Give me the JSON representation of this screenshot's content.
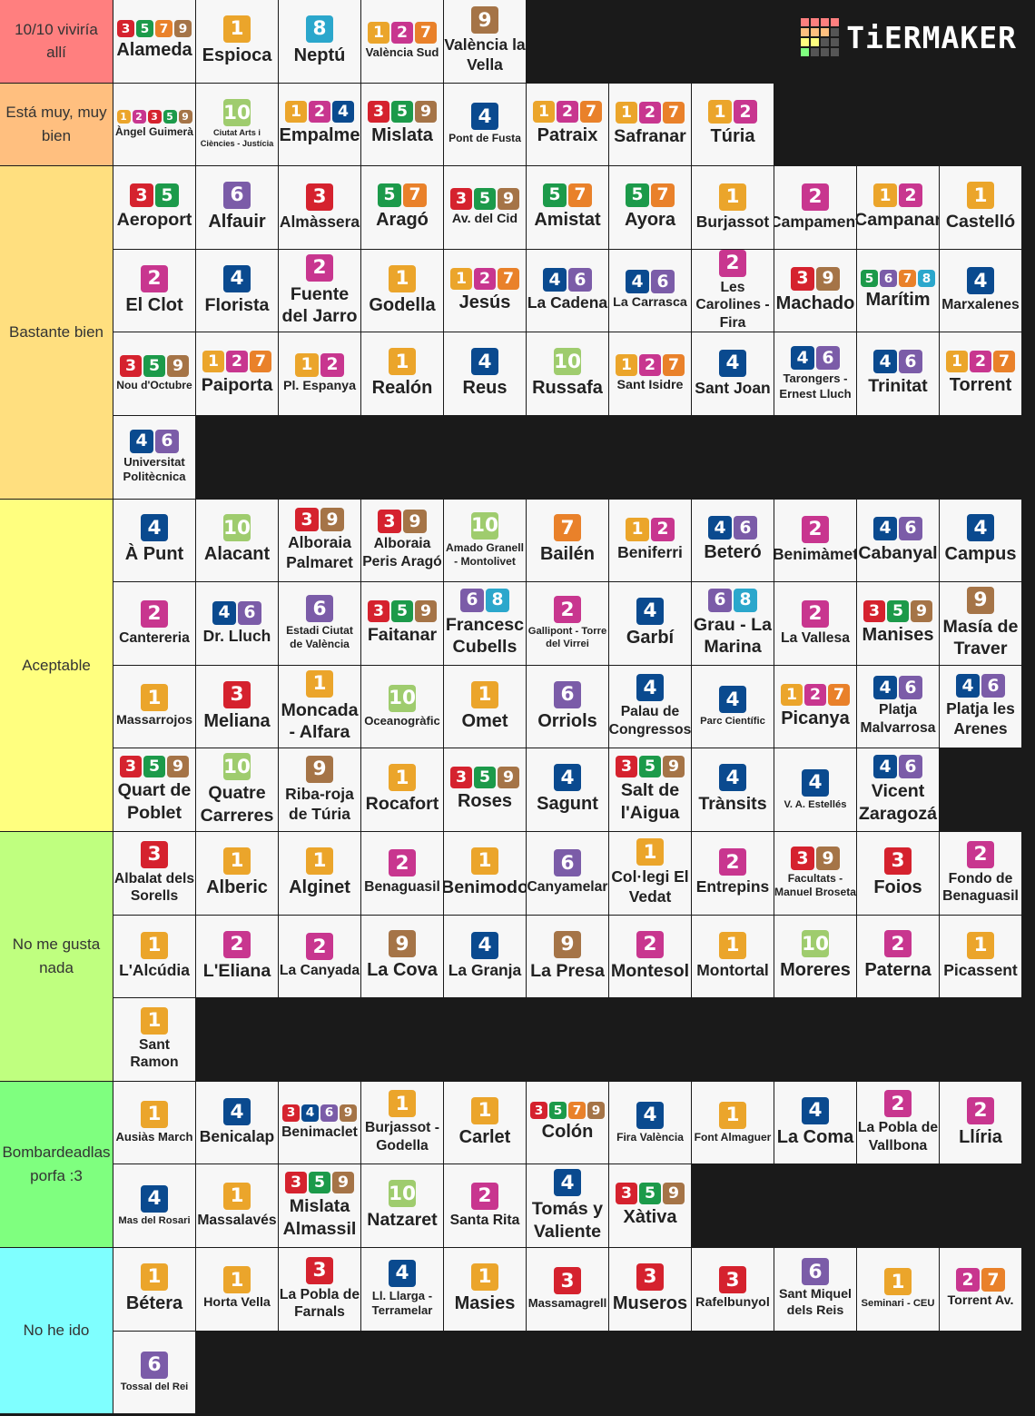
{
  "header": {
    "logo": "TiERMAKER"
  },
  "line_colors": {
    "1": "#eba52b",
    "2": "#c8368f",
    "3": "#d5222e",
    "4": "#0a4a8f",
    "5": "#1c9a4a",
    "6": "#7b5ca8",
    "7": "#e9812a",
    "8": "#2ba7cc",
    "9": "#a57447",
    "10": "#9fcc6e"
  },
  "tiers": [
    {
      "label": "10/10 viviría allí",
      "color": "#ff7f7f",
      "items": [
        {
          "name": "Alameda",
          "lines": [
            3,
            5,
            7,
            9
          ]
        },
        {
          "name": "Espioca",
          "lines": [
            1
          ]
        },
        {
          "name": "Neptú",
          "lines": [
            8
          ]
        },
        {
          "name": "València Sud",
          "lines": [
            1,
            2,
            7
          ]
        },
        {
          "name": "València la Vella",
          "lines": [
            9
          ]
        }
      ]
    },
    {
      "label": "Está muy, muy bien",
      "color": "#ffbf7f",
      "items": [
        {
          "name": "Àngel Guimerà",
          "lines": [
            1,
            2,
            3,
            5,
            9
          ]
        },
        {
          "name": "Ciutat Arts i Ciències - Justícia",
          "lines": [
            10
          ]
        },
        {
          "name": "Empalme",
          "lines": [
            1,
            2,
            4
          ]
        },
        {
          "name": "Mislata",
          "lines": [
            3,
            5,
            9
          ]
        },
        {
          "name": "Pont de Fusta",
          "lines": [
            4
          ]
        },
        {
          "name": "Patraix",
          "lines": [
            1,
            2,
            7
          ]
        },
        {
          "name": "Safranar",
          "lines": [
            1,
            2,
            7
          ]
        },
        {
          "name": "Túria",
          "lines": [
            1,
            2
          ]
        }
      ]
    },
    {
      "label": "Bastante bien",
      "color": "#ffdf7f",
      "items": [
        {
          "name": "Aeroport",
          "lines": [
            3,
            5
          ]
        },
        {
          "name": "Alfauir",
          "lines": [
            6
          ]
        },
        {
          "name": "Almàssera",
          "lines": [
            3
          ]
        },
        {
          "name": "Aragó",
          "lines": [
            5,
            7
          ]
        },
        {
          "name": "Av. del Cid",
          "lines": [
            3,
            5,
            9
          ]
        },
        {
          "name": "Amistat",
          "lines": [
            5,
            7
          ]
        },
        {
          "name": "Ayora",
          "lines": [
            5,
            7
          ]
        },
        {
          "name": "Burjassot",
          "lines": [
            1
          ]
        },
        {
          "name": "Campament",
          "lines": [
            2
          ]
        },
        {
          "name": "Campanar",
          "lines": [
            1,
            2
          ]
        },
        {
          "name": "Castelló",
          "lines": [
            1
          ]
        },
        {
          "name": "El Clot",
          "lines": [
            2
          ]
        },
        {
          "name": "Florista",
          "lines": [
            4
          ]
        },
        {
          "name": "Fuente del Jarro",
          "lines": [
            2
          ]
        },
        {
          "name": "Godella",
          "lines": [
            1
          ]
        },
        {
          "name": "Jesús",
          "lines": [
            1,
            2,
            7
          ]
        },
        {
          "name": "La Cadena",
          "lines": [
            4,
            6
          ]
        },
        {
          "name": "La Carrasca",
          "lines": [
            4,
            6
          ]
        },
        {
          "name": "Les Carolines - Fira",
          "lines": [
            2
          ]
        },
        {
          "name": "Machado",
          "lines": [
            3,
            9
          ]
        },
        {
          "name": "Marítim",
          "lines": [
            5,
            6,
            7,
            8
          ]
        },
        {
          "name": "Marxalenes",
          "lines": [
            4
          ]
        },
        {
          "name": "Nou d'Octubre",
          "lines": [
            3,
            5,
            9
          ]
        },
        {
          "name": "Paiporta",
          "lines": [
            1,
            2,
            7
          ]
        },
        {
          "name": "Pl. Espanya",
          "lines": [
            1,
            2
          ]
        },
        {
          "name": "Realón",
          "lines": [
            1
          ]
        },
        {
          "name": "Reus",
          "lines": [
            4
          ]
        },
        {
          "name": "Russafa",
          "lines": [
            10
          ]
        },
        {
          "name": "Sant Isidre",
          "lines": [
            1,
            2,
            7
          ]
        },
        {
          "name": "Sant Joan",
          "lines": [
            4
          ]
        },
        {
          "name": "Tarongers - Ernest Lluch",
          "lines": [
            4,
            6
          ]
        },
        {
          "name": "Trinitat",
          "lines": [
            4,
            6
          ]
        },
        {
          "name": "Torrent",
          "lines": [
            1,
            2,
            7
          ]
        },
        {
          "name": "Universitat Politècnica",
          "lines": [
            4,
            6
          ]
        }
      ]
    },
    {
      "label": "Aceptable",
      "color": "#ffff7f",
      "items": [
        {
          "name": "À Punt",
          "lines": [
            4
          ]
        },
        {
          "name": "Alacant",
          "lines": [
            10
          ]
        },
        {
          "name": "Alboraia Palmaret",
          "lines": [
            3,
            9
          ]
        },
        {
          "name": "Alboraia Peris Aragó",
          "lines": [
            3,
            9
          ]
        },
        {
          "name": "Amado Granell - Montolivet",
          "lines": [
            10
          ]
        },
        {
          "name": "Bailén",
          "lines": [
            7
          ]
        },
        {
          "name": "Beniferri",
          "lines": [
            1,
            2
          ]
        },
        {
          "name": "Beteró",
          "lines": [
            4,
            6
          ]
        },
        {
          "name": "Benimàmet",
          "lines": [
            2
          ]
        },
        {
          "name": "Cabanyal",
          "lines": [
            4,
            6
          ]
        },
        {
          "name": "Campus",
          "lines": [
            4
          ]
        },
        {
          "name": "Cantereria",
          "lines": [
            2
          ]
        },
        {
          "name": "Dr. Lluch",
          "lines": [
            4,
            6
          ]
        },
        {
          "name": "Estadi Ciutat de València",
          "lines": [
            6
          ]
        },
        {
          "name": "Faitanar",
          "lines": [
            3,
            5,
            9
          ]
        },
        {
          "name": "Francesc Cubells",
          "lines": [
            6,
            8
          ]
        },
        {
          "name": "Gallipont - Torre del Virrei",
          "lines": [
            2
          ]
        },
        {
          "name": "Garbí",
          "lines": [
            4
          ]
        },
        {
          "name": "Grau - La Marina",
          "lines": [
            6,
            8
          ]
        },
        {
          "name": "La Vallesa",
          "lines": [
            2
          ]
        },
        {
          "name": "Manises",
          "lines": [
            3,
            5,
            9
          ]
        },
        {
          "name": "Masía de Traver",
          "lines": [
            9
          ]
        },
        {
          "name": "Massarrojos",
          "lines": [
            1
          ]
        },
        {
          "name": "Meliana",
          "lines": [
            3
          ]
        },
        {
          "name": "Moncada - Alfara",
          "lines": [
            1
          ]
        },
        {
          "name": "Oceanogràfic",
          "lines": [
            10
          ]
        },
        {
          "name": "Omet",
          "lines": [
            1
          ]
        },
        {
          "name": "Orriols",
          "lines": [
            6
          ]
        },
        {
          "name": "Palau de Congressos",
          "lines": [
            4
          ]
        },
        {
          "name": "Parc Científic",
          "lines": [
            4
          ]
        },
        {
          "name": "Picanya",
          "lines": [
            1,
            2,
            7
          ]
        },
        {
          "name": "Platja Malvarrosa",
          "lines": [
            4,
            6
          ]
        },
        {
          "name": "Platja les Arenes",
          "lines": [
            4,
            6
          ]
        },
        {
          "name": "Quart de Poblet",
          "lines": [
            3,
            5,
            9
          ]
        },
        {
          "name": "Quatre Carreres",
          "lines": [
            10
          ]
        },
        {
          "name": "Riba-roja de Túria",
          "lines": [
            9
          ]
        },
        {
          "name": "Rocafort",
          "lines": [
            1
          ]
        },
        {
          "name": "Roses",
          "lines": [
            3,
            5,
            9
          ]
        },
        {
          "name": "Sagunt",
          "lines": [
            4
          ]
        },
        {
          "name": "Salt de l'Aigua",
          "lines": [
            3,
            5,
            9
          ]
        },
        {
          "name": "Trànsits",
          "lines": [
            4
          ]
        },
        {
          "name": "V. A. Estellés",
          "lines": [
            4
          ]
        },
        {
          "name": "Vicent Zaragozá",
          "lines": [
            4,
            6
          ]
        }
      ]
    },
    {
      "label": "No me gusta nada",
      "color": "#bfff7f",
      "items": [
        {
          "name": "Albalat dels Sorells",
          "lines": [
            3
          ]
        },
        {
          "name": "Alberic",
          "lines": [
            1
          ]
        },
        {
          "name": "Alginet",
          "lines": [
            1
          ]
        },
        {
          "name": "Benaguasil",
          "lines": [
            2
          ]
        },
        {
          "name": "Benimodo",
          "lines": [
            1
          ]
        },
        {
          "name": "Canyamelar",
          "lines": [
            6
          ]
        },
        {
          "name": "Col·legi El Vedat",
          "lines": [
            1
          ]
        },
        {
          "name": "Entrepins",
          "lines": [
            2
          ]
        },
        {
          "name": "Facultats - Manuel Broseta",
          "lines": [
            3,
            9
          ]
        },
        {
          "name": "Foios",
          "lines": [
            3
          ]
        },
        {
          "name": "Fondo de Benaguasil",
          "lines": [
            2
          ]
        },
        {
          "name": "L'Alcúdia",
          "lines": [
            1
          ]
        },
        {
          "name": "L'Eliana",
          "lines": [
            2
          ]
        },
        {
          "name": "La Canyada",
          "lines": [
            2
          ]
        },
        {
          "name": "La Cova",
          "lines": [
            9
          ]
        },
        {
          "name": "La Granja",
          "lines": [
            4
          ]
        },
        {
          "name": "La Presa",
          "lines": [
            9
          ]
        },
        {
          "name": "Montesol",
          "lines": [
            2
          ]
        },
        {
          "name": "Montortal",
          "lines": [
            1
          ]
        },
        {
          "name": "Moreres",
          "lines": [
            10
          ]
        },
        {
          "name": "Paterna",
          "lines": [
            2
          ]
        },
        {
          "name": "Picassent",
          "lines": [
            1
          ]
        },
        {
          "name": "Sant Ramon",
          "lines": [
            1
          ]
        }
      ]
    },
    {
      "label": "Bombardeadlas porfa :3",
      "color": "#7fff7f",
      "items": [
        {
          "name": "Ausiàs March",
          "lines": [
            1
          ]
        },
        {
          "name": "Benicalap",
          "lines": [
            4
          ]
        },
        {
          "name": "Benimaclet",
          "lines": [
            3,
            4,
            6,
            9
          ]
        },
        {
          "name": "Burjassot - Godella",
          "lines": [
            1
          ]
        },
        {
          "name": "Carlet",
          "lines": [
            1
          ]
        },
        {
          "name": "Colón",
          "lines": [
            3,
            5,
            7,
            9
          ]
        },
        {
          "name": "Fira València",
          "lines": [
            4
          ]
        },
        {
          "name": "Font Almaguer",
          "lines": [
            1
          ]
        },
        {
          "name": "La Coma",
          "lines": [
            4
          ]
        },
        {
          "name": "La Pobla de Vallbona",
          "lines": [
            2
          ]
        },
        {
          "name": "Llíria",
          "lines": [
            2
          ]
        },
        {
          "name": "Mas del Rosari",
          "lines": [
            4
          ]
        },
        {
          "name": "Massalavés",
          "lines": [
            1
          ]
        },
        {
          "name": "Mislata Almassil",
          "lines": [
            3,
            5,
            9
          ]
        },
        {
          "name": "Natzaret",
          "lines": [
            10
          ]
        },
        {
          "name": "Santa Rita",
          "lines": [
            2
          ]
        },
        {
          "name": "Tomás y Valiente",
          "lines": [
            4
          ]
        },
        {
          "name": "Xàtiva",
          "lines": [
            3,
            5,
            9
          ]
        }
      ]
    },
    {
      "label": "No he ido",
      "color": "#7fffff",
      "items": [
        {
          "name": "Bétera",
          "lines": [
            1
          ]
        },
        {
          "name": "Horta Vella",
          "lines": [
            1
          ]
        },
        {
          "name": "La Pobla de Farnals",
          "lines": [
            3
          ]
        },
        {
          "name": "Ll. Llarga - Terramelar",
          "lines": [
            4
          ]
        },
        {
          "name": "Masies",
          "lines": [
            1
          ]
        },
        {
          "name": "Massamagrell",
          "lines": [
            3
          ]
        },
        {
          "name": "Museros",
          "lines": [
            3
          ]
        },
        {
          "name": "Rafelbunyol",
          "lines": [
            3
          ]
        },
        {
          "name": "Sant Miquel dels Reis",
          "lines": [
            6
          ]
        },
        {
          "name": "Seminari - CEU",
          "lines": [
            1
          ]
        },
        {
          "name": "Torrent Av.",
          "lines": [
            2,
            7
          ]
        },
        {
          "name": "Tossal del Rei",
          "lines": [
            6
          ]
        }
      ]
    }
  ]
}
